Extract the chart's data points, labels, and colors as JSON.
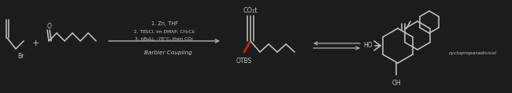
{
  "bg_color": "#1c1c1c",
  "fig_width": 6.5,
  "fig_height": 1.18,
  "dpi": 100,
  "reaction_steps": [
    "1. Zn, THF",
    "2. TBSCl, Im DMAP, CH₂Cl₂",
    "3. nBuLi, -78°C, then CO₂"
  ],
  "label_barbier": "Barbier Coupling",
  "label_product": "cycloproparadicicol",
  "label_co2t": "CO₂t",
  "label_otbs": "OTBS",
  "label_ho": "HO",
  "label_oh": "OH",
  "arrow_color": "#b0b0b0",
  "text_color": "#c8c8c8",
  "bond_color": "#c8c8c8",
  "red_bond_color": "#cc2200",
  "lw": 1.1
}
